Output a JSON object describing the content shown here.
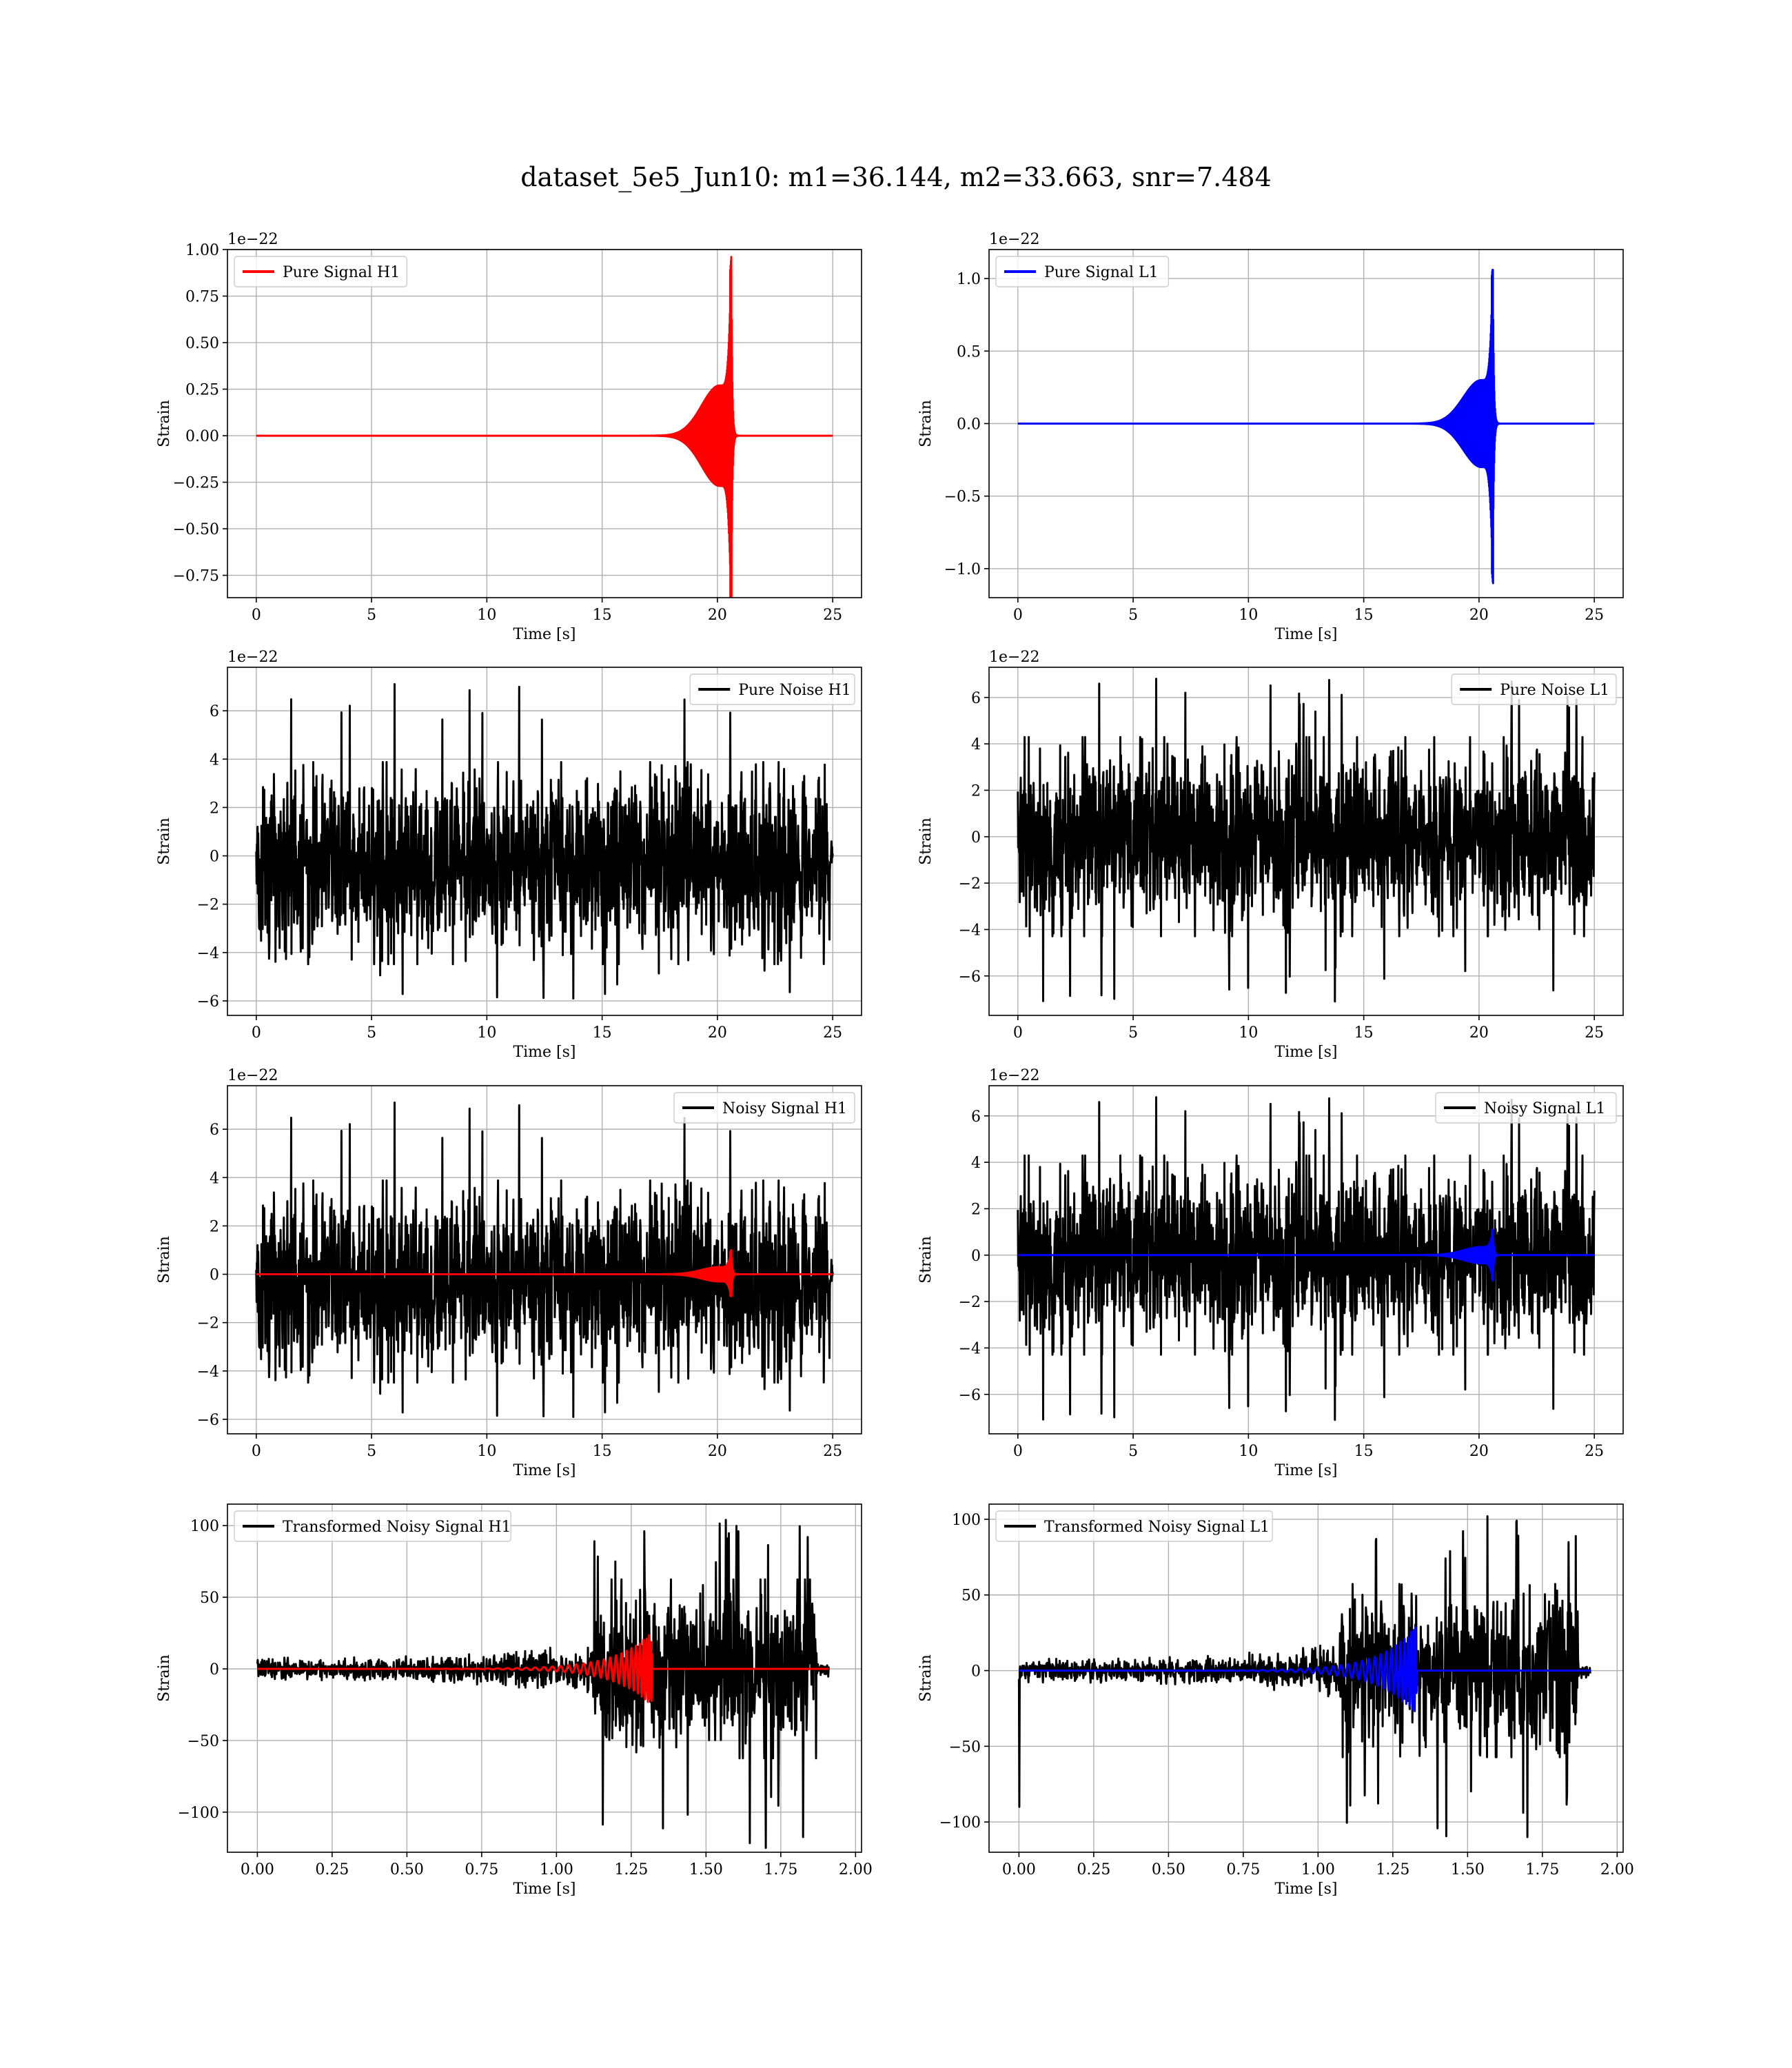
{
  "figure": {
    "title": "dataset_5e5_Jun10: m1=36.144, m2=33.663, snr=7.484"
  },
  "colors": {
    "h1_signal": "#ff0000",
    "l1_signal": "#0000ff",
    "noise": "#000000",
    "grid": "#b0b0b0"
  },
  "chart_data": [
    {
      "id": "pure-signal-h1",
      "type": "line",
      "xlabel": "Time [s]",
      "ylabel": "Strain",
      "offset_text": "1e−22",
      "xlim": [
        -1.25,
        26.25
      ],
      "ylim": [
        -0.87,
        1.0
      ],
      "xticks": [
        0,
        5,
        10,
        15,
        20,
        25
      ],
      "yticks": [
        -0.75,
        -0.5,
        -0.25,
        0.0,
        0.25,
        0.5,
        0.75,
        1.0
      ],
      "ytick_labels": [
        "−0.75",
        "−0.50",
        "−0.25",
        "0.00",
        "0.25",
        "0.50",
        "0.75",
        "1.00"
      ],
      "legend_position": "upper left",
      "series": [
        {
          "name": "Pure Signal H1",
          "color": "#ff0000",
          "kind": "chirp",
          "t_start": 0,
          "t_end": 25,
          "t_merger": 20.6,
          "peak_pos": 0.96,
          "peak_neg": -0.87,
          "plateau": 0.27
        }
      ]
    },
    {
      "id": "pure-signal-l1",
      "type": "line",
      "xlabel": "Time [s]",
      "ylabel": "Strain",
      "offset_text": "1e−22",
      "xlim": [
        -1.25,
        26.25
      ],
      "ylim": [
        -1.2,
        1.2
      ],
      "xticks": [
        0,
        5,
        10,
        15,
        20,
        25
      ],
      "yticks": [
        -1.0,
        -0.5,
        0.0,
        0.5,
        1.0
      ],
      "ytick_labels": [
        "−1.0",
        "−0.5",
        "0.0",
        "0.5",
        "1.0"
      ],
      "legend_position": "upper left",
      "series": [
        {
          "name": "Pure Signal L1",
          "color": "#0000ff",
          "kind": "chirp",
          "t_start": 0,
          "t_end": 25,
          "t_merger": 20.6,
          "peak_pos": 1.06,
          "peak_neg": -1.1,
          "plateau": 0.3
        }
      ]
    },
    {
      "id": "pure-noise-h1",
      "type": "line",
      "xlabel": "Time [s]",
      "ylabel": "Strain",
      "offset_text": "1e−22",
      "xlim": [
        -1.25,
        26.25
      ],
      "ylim": [
        -6.6,
        7.8
      ],
      "xticks": [
        0,
        5,
        10,
        15,
        20,
        25
      ],
      "yticks": [
        -6,
        -4,
        -2,
        0,
        2,
        4,
        6
      ],
      "ytick_labels": [
        "−6",
        "−4",
        "−2",
        "0",
        "2",
        "4",
        "6"
      ],
      "legend_position": "upper right",
      "series": [
        {
          "name": "Pure Noise H1",
          "color": "#000000",
          "kind": "noise",
          "t_start": 0,
          "t_end": 25,
          "center": -0.3,
          "band": 3.8,
          "max": 7.1,
          "min": -5.9,
          "seed": 11
        }
      ]
    },
    {
      "id": "pure-noise-l1",
      "type": "line",
      "xlabel": "Time [s]",
      "ylabel": "Strain",
      "offset_text": "1e−22",
      "xlim": [
        -1.25,
        26.25
      ],
      "ylim": [
        -7.7,
        7.3
      ],
      "xticks": [
        0,
        5,
        10,
        15,
        20,
        25
      ],
      "yticks": [
        -6,
        -4,
        -2,
        0,
        2,
        4,
        6
      ],
      "ytick_labels": [
        "−6",
        "−4",
        "−2",
        "0",
        "2",
        "4",
        "6"
      ],
      "legend_position": "upper right",
      "series": [
        {
          "name": "Pure Noise L1",
          "color": "#000000",
          "kind": "noise",
          "t_start": 0,
          "t_end": 25,
          "center": 0.0,
          "band": 3.9,
          "max": 6.8,
          "min": -7.1,
          "seed": 23
        }
      ]
    },
    {
      "id": "noisy-signal-h1",
      "type": "line",
      "xlabel": "Time [s]",
      "ylabel": "Strain",
      "offset_text": "1e−22",
      "xlim": [
        -1.25,
        26.25
      ],
      "ylim": [
        -6.6,
        7.8
      ],
      "xticks": [
        0,
        5,
        10,
        15,
        20,
        25
      ],
      "yticks": [
        -6,
        -4,
        -2,
        0,
        2,
        4,
        6
      ],
      "ytick_labels": [
        "−6",
        "−4",
        "−2",
        "0",
        "2",
        "4",
        "6"
      ],
      "legend_position": "upper right",
      "series": [
        {
          "name": "Noisy Signal H1",
          "color": "#000000",
          "kind": "noise",
          "t_start": 0,
          "t_end": 25,
          "center": -0.3,
          "band": 3.8,
          "max": 7.1,
          "min": -5.9,
          "seed": 11
        },
        {
          "name": "",
          "color": "#ff0000",
          "kind": "chirp",
          "t_start": 0,
          "t_end": 25,
          "t_merger": 20.6,
          "peak_pos": 1.0,
          "peak_neg": -0.9,
          "plateau": 0.3
        }
      ]
    },
    {
      "id": "noisy-signal-l1",
      "type": "line",
      "xlabel": "Time [s]",
      "ylabel": "Strain",
      "offset_text": "1e−22",
      "xlim": [
        -1.25,
        26.25
      ],
      "ylim": [
        -7.7,
        7.3
      ],
      "xticks": [
        0,
        5,
        10,
        15,
        20,
        25
      ],
      "yticks": [
        -6,
        -4,
        -2,
        0,
        2,
        4,
        6
      ],
      "ytick_labels": [
        "−6",
        "−4",
        "−2",
        "0",
        "2",
        "4",
        "6"
      ],
      "legend_position": "upper right",
      "series": [
        {
          "name": "Noisy Signal L1",
          "color": "#000000",
          "kind": "noise",
          "t_start": 0,
          "t_end": 25,
          "center": 0.0,
          "band": 3.9,
          "max": 6.8,
          "min": -7.1,
          "seed": 23
        },
        {
          "name": "",
          "color": "#0000ff",
          "kind": "chirp",
          "t_start": 0,
          "t_end": 25,
          "t_merger": 20.6,
          "peak_pos": 1.1,
          "peak_neg": -1.1,
          "plateau": 0.35
        }
      ]
    },
    {
      "id": "transformed-noisy-signal-h1",
      "type": "line",
      "xlabel": "Time [s]",
      "ylabel": "Strain",
      "offset_text": "",
      "xlim": [
        -0.1,
        2.02
      ],
      "ylim": [
        -128,
        115
      ],
      "xticks": [
        0.0,
        0.25,
        0.5,
        0.75,
        1.0,
        1.25,
        1.5,
        1.75,
        2.0
      ],
      "xtick_labels": [
        "0.00",
        "0.25",
        "0.50",
        "0.75",
        "1.00",
        "1.25",
        "1.50",
        "1.75",
        "2.00"
      ],
      "yticks": [
        -100,
        -50,
        0,
        50,
        100
      ],
      "ytick_labels": [
        "−100",
        "−50",
        "0",
        "50",
        "100"
      ],
      "legend_position": "upper left",
      "series": [
        {
          "name": "Transformed Noisy Signal H1",
          "color": "#000000",
          "kind": "tnoise",
          "t_start": 0,
          "t_end": 1.91,
          "t_jump": 1.12,
          "t_stop": 1.87,
          "low_band": 6,
          "high_band": 48,
          "max": 104,
          "min": -125,
          "seed": 37
        },
        {
          "name": "",
          "color": "#ff0000",
          "kind": "tchirp",
          "t_start": 0,
          "t_end": 1.91,
          "t_merger": 1.32,
          "peak": 26
        }
      ]
    },
    {
      "id": "transformed-noisy-signal-l1",
      "type": "line",
      "xlabel": "Time [s]",
      "ylabel": "Strain",
      "offset_text": "",
      "xlim": [
        -0.1,
        2.02
      ],
      "ylim": [
        -120,
        110
      ],
      "xticks": [
        0.0,
        0.25,
        0.5,
        0.75,
        1.0,
        1.25,
        1.5,
        1.75,
        2.0
      ],
      "xtick_labels": [
        "0.00",
        "0.25",
        "0.50",
        "0.75",
        "1.00",
        "1.25",
        "1.50",
        "1.75",
        "2.00"
      ],
      "yticks": [
        -100,
        -50,
        0,
        50,
        100
      ],
      "ytick_labels": [
        "−100",
        "−50",
        "0",
        "50",
        "100"
      ],
      "legend_position": "upper left",
      "series": [
        {
          "name": "Transformed Noisy Signal L1",
          "color": "#000000",
          "kind": "tnoise",
          "t_start": 0,
          "t_end": 1.91,
          "t_jump": 1.07,
          "t_stop": 1.87,
          "low_band": 6,
          "high_band": 44,
          "max": 102,
          "min": -110,
          "spike_start": -90,
          "seed": 41
        },
        {
          "name": "",
          "color": "#0000ff",
          "kind": "tchirp",
          "t_start": 0,
          "t_end": 1.91,
          "t_merger": 1.33,
          "peak": 30
        }
      ]
    }
  ]
}
